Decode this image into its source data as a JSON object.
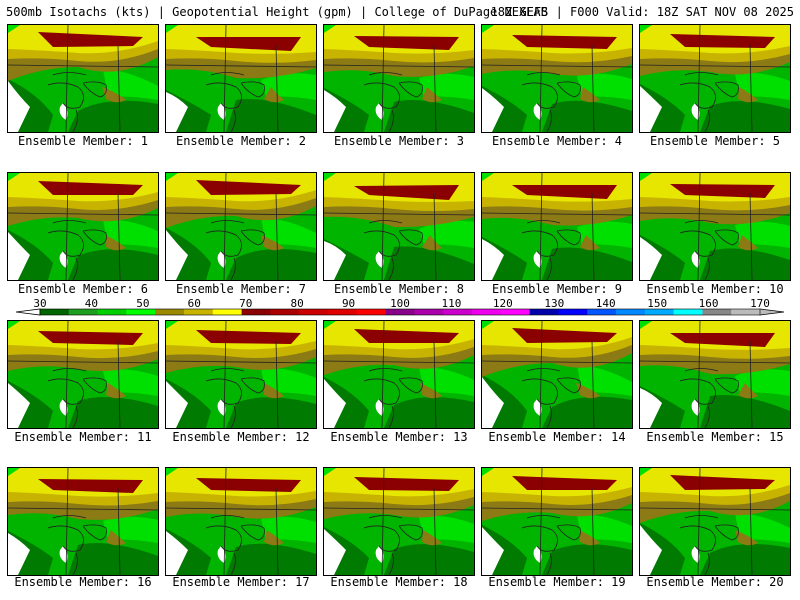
{
  "header": {
    "left": "500mb Isotachs (kts) | Geopotential Height (gpm) | College of DuPage NEXLAB",
    "right": "18Z GEFS | F000 Valid: 18Z SAT NOV 08 2025"
  },
  "member_label_prefix": "Ensemble Member: ",
  "members": [
    "1",
    "2",
    "3",
    "4",
    "5",
    "6",
    "7",
    "8",
    "9",
    "10",
    "11",
    "12",
    "13",
    "14",
    "15",
    "16",
    "17",
    "18",
    "19",
    "20"
  ],
  "colorbar": {
    "labels": [
      "30",
      "40",
      "50",
      "60",
      "70",
      "80",
      "90",
      "100",
      "110",
      "120",
      "130",
      "140",
      "150",
      "160",
      "170"
    ],
    "colors": [
      "#006400",
      "#1e9e1e",
      "#00d000",
      "#00ff00",
      "#9a8a00",
      "#c8b400",
      "#ffff00",
      "#8b0000",
      "#aa0000",
      "#cc0000",
      "#e00000",
      "#ff0000",
      "#880088",
      "#aa00aa",
      "#cc00cc",
      "#ee00ee",
      "#ff00ff",
      "#0000aa",
      "#0000ff",
      "#0055ff",
      "#0088ff",
      "#00aaff",
      "#00ffff",
      "#888888",
      "#bbbbbb"
    ]
  },
  "map_colors": {
    "dark_green": "#007a00",
    "green": "#00b400",
    "bright_green": "#00e000",
    "olive": "#8c7a14",
    "yellow_olive": "#c8b400",
    "yellow": "#e6e600",
    "dark_red": "#8b0000"
  }
}
